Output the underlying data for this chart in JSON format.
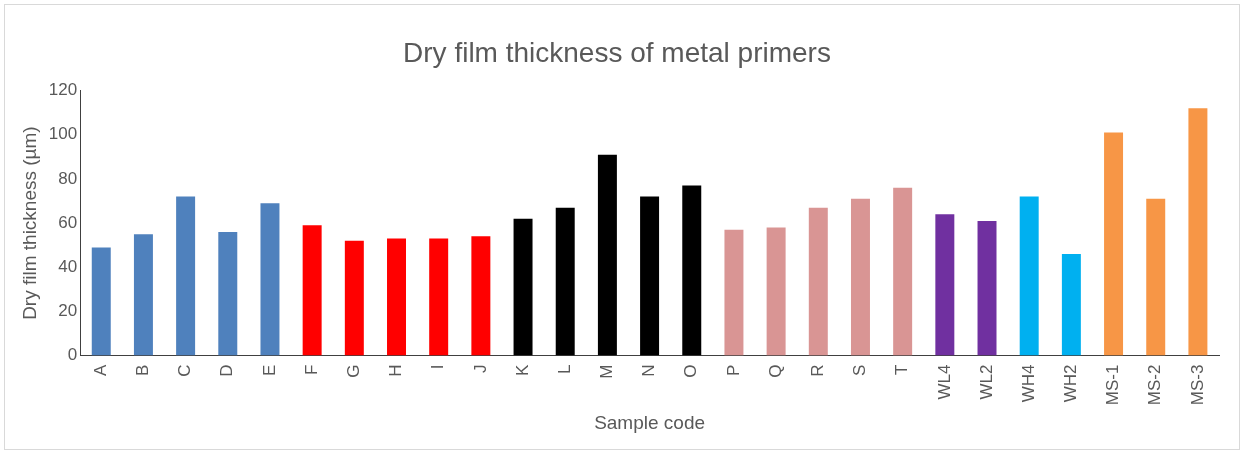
{
  "chart_data": {
    "type": "bar",
    "title": "Dry film thickness of metal primers",
    "xlabel": "Sample code",
    "ylabel": "Dry film thickness (µm)",
    "categories": [
      "A",
      "B",
      "C",
      "D",
      "E",
      "F",
      "G",
      "H",
      "I",
      "J",
      "K",
      "L",
      "M",
      "N",
      "O",
      "P",
      "Q",
      "R",
      "S",
      "T",
      "WL4",
      "WL2",
      "WH4",
      "WH2",
      "MS-1",
      "MS-2",
      "MS-3"
    ],
    "values": [
      49,
      55,
      72,
      56,
      69,
      59,
      52,
      53,
      53,
      54,
      62,
      67,
      91,
      72,
      77,
      57,
      58,
      67,
      71,
      76,
      64,
      61,
      72,
      46,
      101,
      71,
      112
    ],
    "colors": [
      "#4f81bd",
      "#4f81bd",
      "#4f81bd",
      "#4f81bd",
      "#4f81bd",
      "#ff0000",
      "#ff0000",
      "#ff0000",
      "#ff0000",
      "#ff0000",
      "#000000",
      "#000000",
      "#000000",
      "#000000",
      "#000000",
      "#d99594",
      "#d99594",
      "#d99594",
      "#d99594",
      "#d99594",
      "#7030a0",
      "#7030a0",
      "#00b0f0",
      "#00b0f0",
      "#f79646",
      "#f79646",
      "#f79646"
    ],
    "ylim": [
      0,
      120
    ],
    "yticks": [
      0,
      20,
      40,
      60,
      80,
      100,
      120
    ],
    "grid": false,
    "legend": false
  }
}
